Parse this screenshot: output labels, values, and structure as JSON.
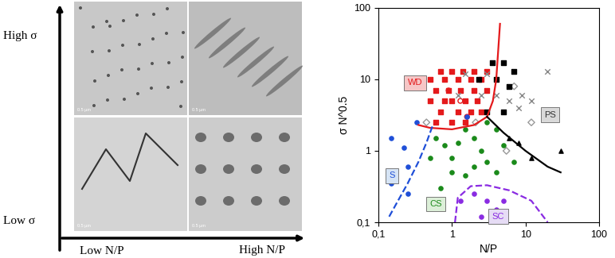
{
  "diagram": {
    "y_axis": {
      "top": "High σ",
      "bottom": "Low σ"
    },
    "x_axis": {
      "left": "Low N/P",
      "right": "High N/P"
    },
    "panels": [
      {
        "scale_bar": "0.5 µm"
      },
      {
        "scale_bar": "0.5 µm"
      },
      {
        "scale_bar": "0.5 µm"
      },
      {
        "scale_bar": "0.5 µm"
      }
    ]
  },
  "chart_data": {
    "type": "scatter",
    "log": true,
    "xlabel": "N/P",
    "ylabel": "σ N^0.5",
    "xlim": [
      0.1,
      100
    ],
    "ylim": [
      0.1,
      100
    ],
    "xticks": [
      {
        "value": 0.1,
        "label": "0,1"
      },
      1,
      10,
      100
    ],
    "yticks": [
      {
        "value": 0.1,
        "label": "0,1"
      },
      1,
      10,
      100
    ],
    "series": [
      {
        "type": "scatter",
        "color": "#e41a1c",
        "marker": "square",
        "x": [
          0.7,
          1,
          1.4,
          2,
          3,
          0.5,
          0.8,
          1.2,
          1.8,
          2.5,
          0.6,
          0.9,
          1.3,
          2,
          3,
          0.5,
          0.8,
          1,
          1.5,
          2.2,
          0.7,
          1.2,
          1.8,
          2.5,
          0.6,
          1,
          1.5
        ],
        "values": [
          13,
          13,
          13,
          13,
          13,
          10,
          10,
          10,
          10,
          10,
          7,
          7,
          7,
          7,
          7,
          5,
          5,
          5,
          5,
          5,
          3.5,
          3.5,
          3.5,
          3.5,
          2.5,
          2.5,
          2.5
        ]
      },
      {
        "type": "scatter",
        "color": "#e41a1c",
        "marker": "circle_open",
        "x": [
          0.9,
          1.3,
          1.6
        ],
        "values": [
          7,
          5,
          3
        ]
      },
      {
        "type": "scatter",
        "color": "#999999",
        "marker": "diamond_open",
        "x": [
          0.45,
          2.1,
          7,
          12,
          5.5
        ],
        "values": [
          2.5,
          2.5,
          8,
          2.5,
          1
        ]
      },
      {
        "type": "scatter",
        "color": "#000000",
        "marker": "square",
        "x": [
          3.5,
          5,
          7,
          4,
          6,
          3,
          5,
          2.3
        ],
        "values": [
          17,
          17,
          13,
          10,
          8,
          3.5,
          3.5,
          10
        ]
      },
      {
        "type": "scatter",
        "color": "#888888",
        "marker": "x",
        "x": [
          1.5,
          2.5,
          4,
          6,
          9,
          20,
          12,
          8,
          3,
          1.2
        ],
        "values": [
          12,
          6,
          6,
          5,
          6,
          13,
          5,
          4,
          12,
          6
        ]
      },
      {
        "type": "scatter",
        "color": "#000000",
        "marker": "triangle",
        "x": [
          6,
          8,
          12,
          30
        ],
        "values": [
          1.5,
          1.3,
          0.8,
          1
        ]
      },
      {
        "type": "scatter",
        "color": "#1f4fd8",
        "marker": "circle",
        "x": [
          0.15,
          0.22,
          0.15,
          0.25,
          0.25,
          0.33,
          1.6
        ],
        "values": [
          1.5,
          1.1,
          0.35,
          0.25,
          0.6,
          2.5,
          3
        ]
      },
      {
        "type": "scatter",
        "color": "#1a8a1a",
        "marker": "circle",
        "x": [
          0.6,
          0.8,
          1,
          1.2,
          1.5,
          2,
          2.5,
          3,
          1,
          0.5,
          4,
          5,
          2,
          1.5,
          3,
          0.7,
          4,
          7
        ],
        "values": [
          1.5,
          1.2,
          0.8,
          1.3,
          2,
          1.5,
          1,
          0.7,
          0.5,
          0.8,
          2,
          1.2,
          0.6,
          0.45,
          2.5,
          0.3,
          0.5,
          0.7
        ]
      },
      {
        "type": "scatter",
        "color": "#8a2be2",
        "marker": "circle",
        "x": [
          1.3,
          2,
          3,
          4,
          2.5,
          5
        ],
        "values": [
          0.2,
          0.25,
          0.2,
          0.15,
          0.12,
          0.2
        ]
      },
      {
        "type": "line",
        "color": "#e41a1c",
        "line_style": "solid",
        "x": [
          0.35,
          0.5,
          1,
          2,
          3,
          3.6,
          4,
          4.3,
          4.5
        ],
        "values": [
          2.3,
          2.1,
          2.0,
          2.3,
          3,
          5,
          10,
          30,
          60
        ]
      },
      {
        "type": "line",
        "color": "#000000",
        "line_style": "solid",
        "x": [
          3,
          5,
          10,
          20,
          30
        ],
        "values": [
          3,
          1.8,
          1,
          0.6,
          0.5
        ]
      },
      {
        "type": "line",
        "color": "#1f4fd8",
        "line_style": "dashed",
        "x": [
          0.14,
          0.25,
          0.35,
          0.45,
          0.55
        ],
        "values": [
          0.12,
          0.35,
          0.7,
          1.3,
          2.3
        ]
      },
      {
        "type": "line",
        "color": "#8a2be2",
        "line_style": "dashed",
        "x": [
          1.1,
          1.2,
          1.8,
          3,
          6,
          12,
          20
        ],
        "values": [
          0.1,
          0.22,
          0.32,
          0.33,
          0.28,
          0.2,
          0.1
        ]
      }
    ],
    "annotations": [
      {
        "text": "WD",
        "x": 0.25,
        "y": 9,
        "color": "#e41a1c"
      },
      {
        "text": "S",
        "x": 0.14,
        "y": 0.45,
        "color": "#1f4fd8"
      },
      {
        "text": "CS",
        "x": 0.5,
        "y": 0.18,
        "color": "#1a8a1a"
      },
      {
        "text": "SC",
        "x": 3.5,
        "y": 0.12,
        "color": "#8a2be2"
      },
      {
        "text": "PS",
        "x": 18,
        "y": 3.2,
        "color": "#333333"
      }
    ]
  }
}
